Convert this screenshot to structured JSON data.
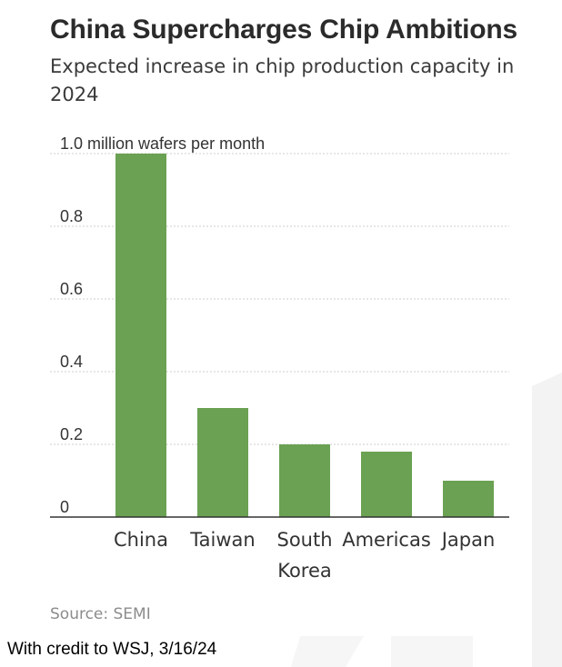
{
  "title": "China Supercharges Chip Ambitions",
  "subtitle": "Expected increase in chip production capacity in 2024",
  "source": "Source: SEMI",
  "credit": "With credit to WSJ, 3/16/24",
  "colors": {
    "bar": "#6aa152",
    "grid": "#cfcfcf",
    "axis": "#333333",
    "text": "#333333"
  },
  "chart_data": {
    "type": "bar",
    "title": "China Supercharges Chip Ambitions",
    "subtitle": "Expected increase in chip production capacity in 2024",
    "ylabel": "million wafers per month",
    "xlabel": "",
    "categories": [
      [
        "China"
      ],
      [
        "Taiwan"
      ],
      [
        "South",
        "Korea"
      ],
      [
        "Americas"
      ],
      [
        "Japan"
      ]
    ],
    "values": [
      1.0,
      0.3,
      0.2,
      0.18,
      0.1
    ],
    "ylim": [
      0,
      1.0
    ],
    "yticks": [
      0,
      0.2,
      0.4,
      0.6,
      0.8,
      1.0
    ],
    "ytick_labels": [
      "0",
      "0.2",
      "0.4",
      "0.6",
      "0.8",
      "1.0 million wafers per month"
    ],
    "grid": true,
    "legend": "none"
  }
}
